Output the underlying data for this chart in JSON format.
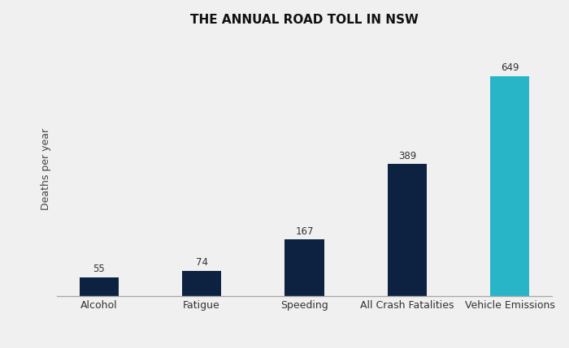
{
  "title": "THE ANNUAL ROAD TOLL IN NSW",
  "categories": [
    "Alcohol",
    "Fatigue",
    "Speeding",
    "All Crash Fatalities",
    "Vehicle Emissions"
  ],
  "values": [
    55,
    74,
    167,
    389,
    649
  ],
  "bar_colors": [
    "#0d2240",
    "#0d2240",
    "#0d2240",
    "#0d2240",
    "#29b5c8"
  ],
  "ylabel": "Deaths per year",
  "ylim": [
    0,
    750
  ],
  "background_color": "#f0f0f0",
  "title_fontsize": 11,
  "label_fontsize": 9,
  "value_fontsize": 8.5,
  "bar_width": 0.38
}
